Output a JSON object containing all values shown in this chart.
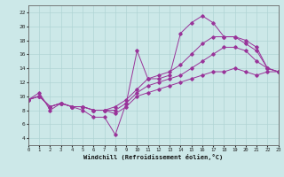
{
  "xlabel": "Windchill (Refroidissement éolien,°C)",
  "background_color": "#cce8e8",
  "line_color": "#993399",
  "xlim": [
    0,
    23
  ],
  "ylim": [
    3,
    23
  ],
  "xticks": [
    0,
    1,
    2,
    3,
    4,
    5,
    6,
    7,
    8,
    9,
    10,
    11,
    12,
    13,
    14,
    15,
    16,
    17,
    18,
    19,
    20,
    21,
    22,
    23
  ],
  "yticks": [
    4,
    6,
    8,
    10,
    12,
    14,
    16,
    18,
    20,
    22
  ],
  "series": [
    {
      "x": [
        0,
        1,
        2,
        3,
        4,
        5,
        6,
        7,
        8,
        9,
        10,
        11,
        12,
        13,
        14,
        15,
        16,
        17,
        18,
        19,
        20,
        21,
        22,
        23
      ],
      "y": [
        9.5,
        10.5,
        8.0,
        9.0,
        8.5,
        8.0,
        7.0,
        7.0,
        4.5,
        9.0,
        16.5,
        12.5,
        12.5,
        13.0,
        19.0,
        20.5,
        21.5,
        20.5,
        18.5,
        18.5,
        17.5,
        16.5,
        14.0,
        13.5
      ]
    },
    {
      "x": [
        0,
        1,
        2,
        3,
        4,
        5,
        6,
        7,
        8,
        9,
        10,
        11,
        12,
        13,
        14,
        15,
        16,
        17,
        18,
        19,
        20,
        21,
        22,
        23
      ],
      "y": [
        9.5,
        10.0,
        8.5,
        9.0,
        8.5,
        8.5,
        8.0,
        8.0,
        8.5,
        9.5,
        11.0,
        12.5,
        13.0,
        13.5,
        14.5,
        16.0,
        17.5,
        18.5,
        18.5,
        18.5,
        18.0,
        17.0,
        14.0,
        13.5
      ]
    },
    {
      "x": [
        0,
        1,
        2,
        3,
        4,
        5,
        6,
        7,
        8,
        9,
        10,
        11,
        12,
        13,
        14,
        15,
        16,
        17,
        18,
        19,
        20,
        21,
        22,
        23
      ],
      "y": [
        9.5,
        10.0,
        8.5,
        9.0,
        8.5,
        8.5,
        8.0,
        8.0,
        8.0,
        9.0,
        10.5,
        11.5,
        12.0,
        12.5,
        13.0,
        14.0,
        15.0,
        16.0,
        17.0,
        17.0,
        16.5,
        15.0,
        14.0,
        13.5
      ]
    },
    {
      "x": [
        0,
        1,
        2,
        3,
        4,
        5,
        6,
        7,
        8,
        9,
        10,
        11,
        12,
        13,
        14,
        15,
        16,
        17,
        18,
        19,
        20,
        21,
        22,
        23
      ],
      "y": [
        9.5,
        10.0,
        8.5,
        9.0,
        8.5,
        8.5,
        8.0,
        8.0,
        7.5,
        8.5,
        10.0,
        10.5,
        11.0,
        11.5,
        12.0,
        12.5,
        13.0,
        13.5,
        13.5,
        14.0,
        13.5,
        13.0,
        13.5,
        13.5
      ]
    }
  ]
}
